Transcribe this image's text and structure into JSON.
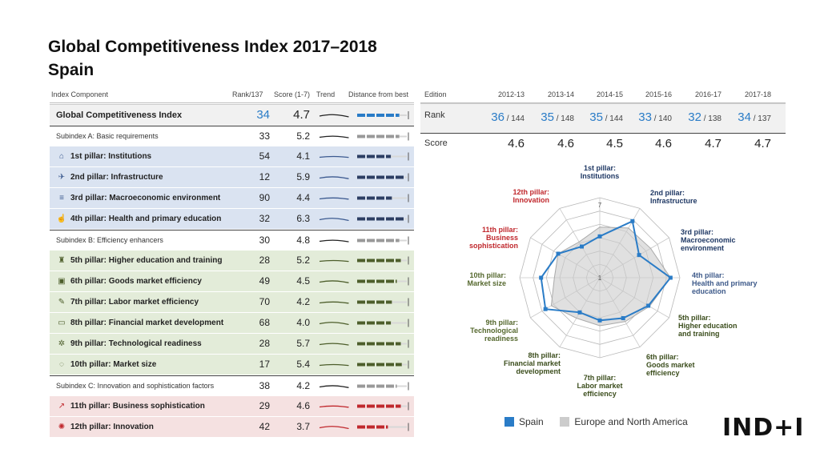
{
  "title": {
    "line1": "Global Competitiveness Index 2017–2018",
    "line2": "Spain"
  },
  "table": {
    "headers": {
      "component": "Index Component",
      "rank": "Rank/137",
      "score": "Score (1-7)",
      "trend": "Trend",
      "distance": "Distance from best"
    },
    "rows": [
      {
        "label": "Global Competitiveness Index",
        "rank": "34",
        "score": "4.7",
        "type": "main",
        "icon": "",
        "dist": 0.85
      },
      {
        "label": "Subindex A: Basic requirements",
        "rank": "33",
        "score": "5.2",
        "type": "sub",
        "icon": "",
        "dist": 0.85
      },
      {
        "label": "1st pillar: Institutions",
        "rank": "54",
        "score": "4.1",
        "type": "pillar",
        "group": "blue",
        "icon": "institutions-icon",
        "dist": 0.68
      },
      {
        "label": "2nd pillar: Infrastructure",
        "rank": "12",
        "score": "5.9",
        "type": "pillar",
        "group": "blue",
        "icon": "infrastructure-icon",
        "dist": 0.95
      },
      {
        "label": "3rd pillar: Macroeconomic environment",
        "rank": "90",
        "score": "4.4",
        "type": "pillar",
        "group": "blue",
        "icon": "macroeconomic-icon",
        "dist": 0.7
      },
      {
        "label": "4th pillar: Health and primary education",
        "rank": "32",
        "score": "6.3",
        "type": "pillar",
        "group": "blue",
        "icon": "health-icon",
        "dist": 0.95
      },
      {
        "label": "Subindex B: Efficiency enhancers",
        "rank": "30",
        "score": "4.8",
        "type": "sub",
        "icon": "",
        "dist": 0.85
      },
      {
        "label": "5th pillar: Higher education and training",
        "rank": "28",
        "score": "5.2",
        "type": "pillar",
        "group": "green",
        "icon": "education-icon",
        "dist": 0.88
      },
      {
        "label": "6th pillar: Goods market efficiency",
        "rank": "49",
        "score": "4.5",
        "type": "pillar",
        "group": "green",
        "icon": "goods-market-icon",
        "dist": 0.8
      },
      {
        "label": "7th pillar: Labor market efficiency",
        "rank": "70",
        "score": "4.2",
        "type": "pillar",
        "group": "green",
        "icon": "labor-market-icon",
        "dist": 0.7
      },
      {
        "label": "8th pillar: Financial market development",
        "rank": "68",
        "score": "4.0",
        "type": "pillar",
        "group": "green",
        "icon": "financial-market-icon",
        "dist": 0.68
      },
      {
        "label": "9th pillar: Technological readiness",
        "rank": "28",
        "score": "5.7",
        "type": "pillar",
        "group": "green",
        "icon": "technology-icon",
        "dist": 0.88
      },
      {
        "label": "10th pillar: Market size",
        "rank": "17",
        "score": "5.4",
        "type": "pillar",
        "group": "green",
        "icon": "market-size-icon",
        "dist": 0.9
      },
      {
        "label": "Subindex C: Innovation and sophistication factors",
        "rank": "38",
        "score": "4.2",
        "type": "sub",
        "icon": "",
        "dist": 0.8
      },
      {
        "label": "11th pillar: Business sophistication",
        "rank": "29",
        "score": "4.6",
        "type": "pillar",
        "group": "red",
        "icon": "business-icon",
        "dist": 0.88
      },
      {
        "label": "12th pillar: Innovation",
        "rank": "42",
        "score": "3.7",
        "type": "pillar",
        "group": "red",
        "icon": "innovation-icon",
        "dist": 0.62
      }
    ]
  },
  "editions": {
    "label": "Edition",
    "rank_label": "Rank",
    "score_label": "Score",
    "columns": [
      {
        "year": "2012-13",
        "rank": "36",
        "of": "/ 144",
        "score": "4.6"
      },
      {
        "year": "2013-14",
        "rank": "35",
        "of": "/ 148",
        "score": "4.6"
      },
      {
        "year": "2014-15",
        "rank": "35",
        "of": "/ 144",
        "score": "4.5"
      },
      {
        "year": "2015-16",
        "rank": "33",
        "of": "/ 140",
        "score": "4.6"
      },
      {
        "year": "2016-17",
        "rank": "32",
        "of": "/ 138",
        "score": "4.7"
      },
      {
        "year": "2017-18",
        "rank": "34",
        "of": "/ 137",
        "score": "4.7"
      }
    ]
  },
  "chart_data": {
    "type": "radar",
    "scale": {
      "min": 1,
      "max": 7,
      "labels": [
        "1",
        "7"
      ]
    },
    "axes": [
      {
        "label": [
          "1st pillar:",
          "Institutions"
        ],
        "color": "#1f3864"
      },
      {
        "label": [
          "2nd pillar:",
          "Infrastructure"
        ],
        "color": "#1f3864"
      },
      {
        "label": [
          "3rd pillar:",
          "Macroeconomic",
          "environment"
        ],
        "color": "#1f3864"
      },
      {
        "label": [
          "4th pillar:",
          "Health and primary",
          "education"
        ],
        "color": "#3e5a8a"
      },
      {
        "label": [
          "5th pillar:",
          "Higher education",
          "and training"
        ],
        "color": "#3b4d1c"
      },
      {
        "label": [
          "6th pillar:",
          "Goods market",
          "efficiency"
        ],
        "color": "#3b4d1c"
      },
      {
        "label": [
          "7th pillar:",
          "Labor market",
          "efficiency"
        ],
        "color": "#3b4d1c"
      },
      {
        "label": [
          "8th pillar:",
          "Financial market",
          "development"
        ],
        "color": "#3b4d1c"
      },
      {
        "label": [
          "9th pillar:",
          "Technological",
          "readiness"
        ],
        "color": "#55682e"
      },
      {
        "label": [
          "10th pillar:",
          "Market size"
        ],
        "color": "#55682e"
      },
      {
        "label": [
          "11th pillar:",
          "Business",
          "sophistication"
        ],
        "color": "#c0282d"
      },
      {
        "label": [
          "12th pillar:",
          "Innovation"
        ],
        "color": "#c0282d"
      }
    ],
    "series": [
      {
        "name": "Spain",
        "color": "#2a7cc7",
        "values": [
          4.1,
          5.9,
          4.4,
          6.3,
          5.2,
          4.5,
          4.2,
          4.0,
          5.7,
          5.4,
          4.6,
          3.7
        ]
      },
      {
        "name": "Europe and North America",
        "color": "#cccccc",
        "values": [
          4.8,
          5.3,
          5.4,
          6.3,
          5.3,
          4.8,
          4.6,
          4.5,
          5.2,
          4.4,
          4.6,
          4.1
        ]
      }
    ]
  },
  "legend": {
    "spain": "Spain",
    "spain_color": "#2a7cc7",
    "region": "Europe and North America",
    "region_color": "#cccccc"
  },
  "logo": "IND+I"
}
